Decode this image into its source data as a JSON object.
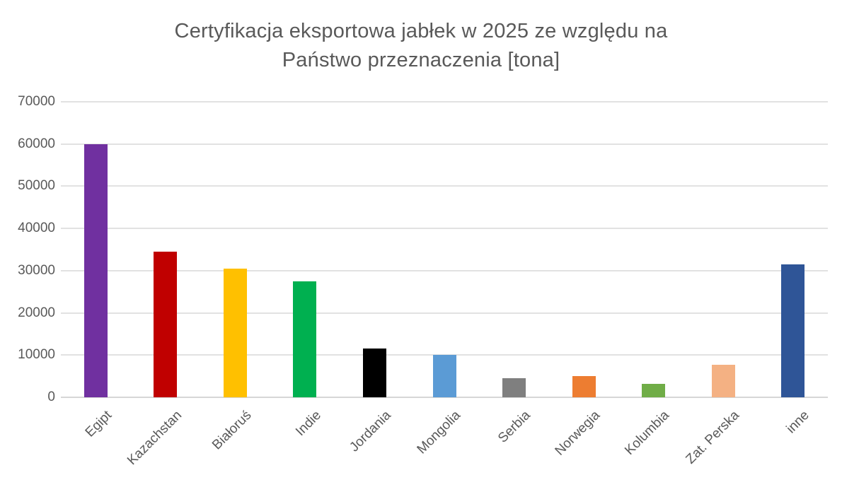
{
  "chart_data": {
    "type": "bar",
    "title": "Certyfikacja eksportowa jabłek w 2025 ze względu na\nPaństwo przeznaczenia [tona]",
    "categories": [
      "Egipt",
      "Kazachstan",
      "Białoruś",
      "Indie",
      "Jordania",
      "Mongolia",
      "Serbia",
      "Norwegia",
      "Kolumbia",
      "Zat. Perska",
      "inne"
    ],
    "values": [
      60000,
      34500,
      30400,
      27500,
      11500,
      10000,
      4600,
      5000,
      3200,
      7700,
      31500
    ],
    "bar_colors": [
      "#7030A0",
      "#C00000",
      "#FFC000",
      "#00B050",
      "#000000",
      "#5B9BD5",
      "#7F7F7F",
      "#ED7D31",
      "#70AD47",
      "#F4B183",
      "#2F5597"
    ],
    "xlabel": "",
    "ylabel": "",
    "ylim": [
      0,
      70000
    ],
    "yticks": [
      0,
      10000,
      20000,
      30000,
      40000,
      50000,
      60000,
      70000
    ],
    "grid": "horizontal",
    "legend": "none"
  },
  "styles": {
    "text_color": "#595959",
    "gridline_color": "#e2e2e2",
    "background": "#ffffff"
  }
}
